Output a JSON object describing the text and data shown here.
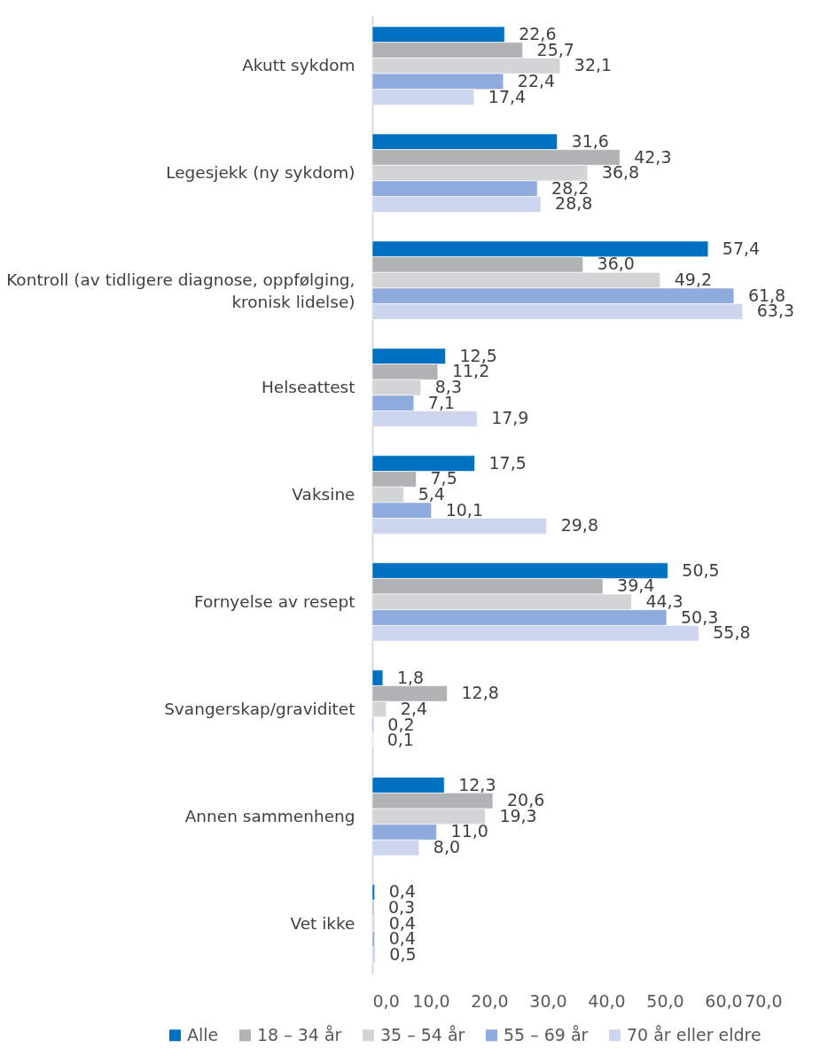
{
  "chart_data": {
    "type": "bar",
    "orientation": "horizontal",
    "categories": [
      "Akutt sykdom",
      "Legesjekk (ny sykdom)",
      "Kontroll (av tidligere diagnose, oppfølging, kronisk lidelse)",
      "Helseattest",
      "Vaksine",
      "Fornyelse av resept",
      "Svangerskap/graviditet",
      "Annen sammenheng",
      "Vet ikke"
    ],
    "series": [
      {
        "name": "Alle",
        "color": "#0070c0",
        "values": [
          22.6,
          31.6,
          57.4,
          12.5,
          17.5,
          50.5,
          1.8,
          12.3,
          0.4
        ],
        "value_labels": [
          "22,6",
          "31,6",
          "57,4",
          "12,5",
          "17,5",
          "50,5",
          "1,8",
          "12,3",
          "0,4"
        ]
      },
      {
        "name": "18 – 34 år",
        "color": "#b1b2b4",
        "values": [
          25.7,
          42.3,
          36.0,
          11.2,
          7.5,
          39.4,
          12.8,
          20.6,
          0.3
        ],
        "value_labels": [
          "25,7",
          "42,3",
          "36,0",
          "11,2",
          "7,5",
          "39,4",
          "12,8",
          "20,6",
          "0,3"
        ]
      },
      {
        "name": "35 – 54 år",
        "color": "#d3d4d5",
        "values": [
          32.1,
          36.8,
          49.2,
          8.3,
          5.4,
          44.3,
          2.4,
          19.3,
          0.4
        ],
        "value_labels": [
          "32,1",
          "36,8",
          "49,2",
          "8,3",
          "5,4",
          "44,3",
          "2,4",
          "19,3",
          "0,4"
        ]
      },
      {
        "name": "55 – 69 år",
        "color": "#8faadc",
        "values": [
          22.4,
          28.2,
          61.8,
          7.1,
          10.1,
          50.3,
          0.2,
          11.0,
          0.4
        ],
        "value_labels": [
          "22,4",
          "28,2",
          "61,8",
          "7,1",
          "10,1",
          "50,3",
          "0,2",
          "11,0",
          "0,4"
        ]
      },
      {
        "name": "70 år eller eldre",
        "color": "#cdd6ee",
        "values": [
          17.4,
          28.8,
          63.3,
          17.9,
          29.8,
          55.8,
          0.1,
          8.0,
          0.5
        ],
        "value_labels": [
          "17,4",
          "28,8",
          "63,3",
          "17,9",
          "29,8",
          "55,8",
          "0,1",
          "8,0",
          "0,5"
        ]
      }
    ],
    "xlim": [
      0,
      70
    ],
    "xticks": [
      {
        "value": 0,
        "label": "0,0"
      },
      {
        "value": 10,
        "label": "10,0"
      },
      {
        "value": 20,
        "label": "20,0"
      },
      {
        "value": 30,
        "label": "30,0"
      },
      {
        "value": 40,
        "label": "40,0"
      },
      {
        "value": 50,
        "label": "50,0"
      },
      {
        "value": 60,
        "label": "60,0"
      },
      {
        "value": 70,
        "label": "70,0"
      }
    ],
    "grid": false,
    "legend": "bottom"
  }
}
